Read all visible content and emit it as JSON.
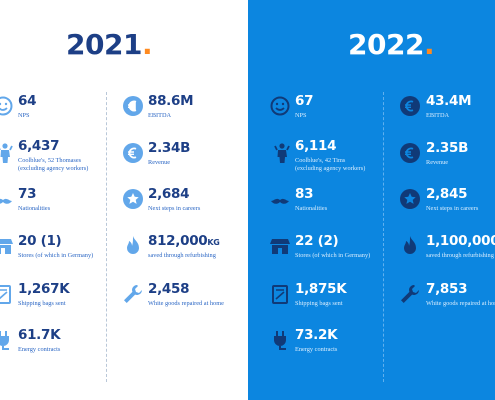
{
  "y2021": {
    "year": "2021",
    "dot": ".",
    "stats": {
      "nps": {
        "value": "64",
        "label": "NPS",
        "icon": "smiley-icon"
      },
      "ebitda": {
        "value": "88.6M",
        "label": "EBITDA",
        "icon": "euro-icon"
      },
      "coolblue": {
        "value": "6,437",
        "label": "Coolblue's, 52 Thomases",
        "label2": "(excluding agency workers)",
        "icon": "person-icon"
      },
      "revenue": {
        "value": "2.34B",
        "label": "Revenue",
        "icon": "euro-icon"
      },
      "nationalities": {
        "value": "73",
        "label": "Nationalities",
        "icon": "moustache-icon"
      },
      "careers": {
        "value": "2,684",
        "label": "Next steps in careers",
        "icon": "star-icon"
      },
      "stores": {
        "value": "20 (1)",
        "label": "Stores (of which in Germany)",
        "icon": "store-icon"
      },
      "refurb": {
        "value": "812,000",
        "unit": "KG",
        "label": "saved through refurbishing",
        "icon": "flame-icon"
      },
      "bags": {
        "value": "1,267K",
        "label": "Shipping bags sent",
        "icon": "bag-icon"
      },
      "white": {
        "value": "2,458",
        "label": "White goods repaired at home",
        "icon": "wrench-icon"
      },
      "energy": {
        "value": "61.7K",
        "label": "Energy contracts",
        "icon": "plug-icon"
      }
    }
  },
  "y2022": {
    "year": "2022",
    "dot": ".",
    "stats": {
      "nps": {
        "value": "67",
        "label": "NPS",
        "icon": "smiley-icon"
      },
      "ebitda": {
        "value": "43.4M",
        "label": "EBITDA",
        "icon": "euro-icon"
      },
      "coolblue": {
        "value": "6,114",
        "label": "Coolblue's, 42 Tims",
        "label2": "(excluding agency workers)",
        "icon": "person-icon"
      },
      "revenue": {
        "value": "2.35B",
        "label": "Revenue",
        "icon": "euro-icon"
      },
      "nationalities": {
        "value": "83",
        "label": "Nationalities",
        "icon": "moustache-icon"
      },
      "careers": {
        "value": "2,845",
        "label": "Next steps in careers",
        "icon": "star-icon"
      },
      "stores": {
        "value": "22 (2)",
        "label": "Stores (of which in Germany)",
        "icon": "store-icon"
      },
      "refurb": {
        "value": "1,100,000",
        "label": "saved through refurbishing",
        "icon": "flame-icon"
      },
      "bags": {
        "value": "1,875K",
        "label": "Shipping bags sent",
        "icon": "bag-icon"
      },
      "white": {
        "value": "7,853",
        "label": "White goods repaired at home",
        "icon": "wrench-icon"
      },
      "energy": {
        "value": "73.2K",
        "label": "Energy contracts",
        "icon": "plug-icon"
      }
    }
  },
  "colors": {
    "navy": "#1d3f86",
    "blue_panel": "#0c86e0",
    "accent_orange": "#ff8a1f",
    "icon_light_blue": "#62a7ea",
    "icon_dark_navy": "#103a78"
  }
}
